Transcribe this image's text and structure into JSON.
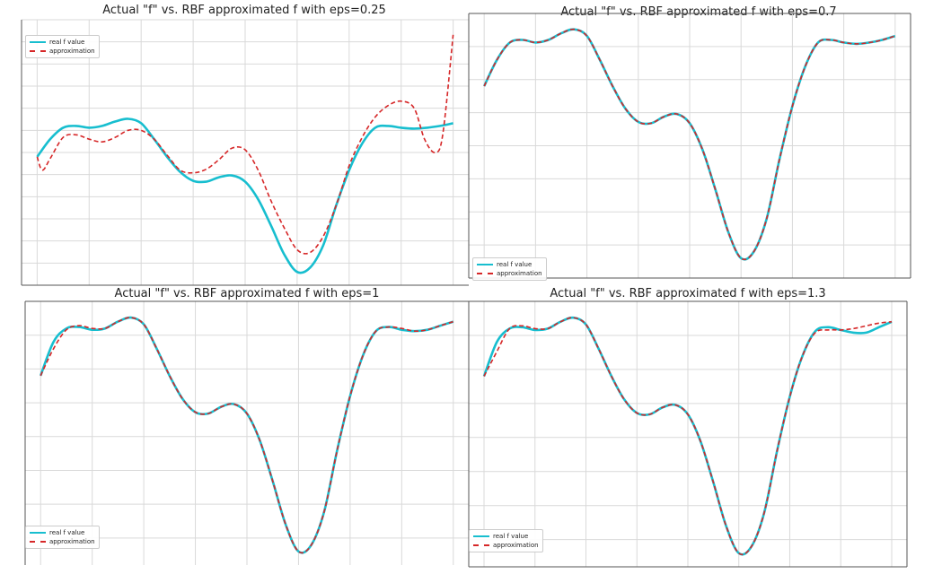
{
  "chart_data": [
    {
      "type": "line",
      "title": "Actual \"f\" vs. RBF approximated f with eps=0.25",
      "xlabel": "",
      "ylabel": "",
      "xlim": [
        -0.3,
        8.3
      ],
      "ylim": [
        -1.25,
        1.75
      ],
      "grid": true,
      "legend_position": "top-left",
      "series": [
        {
          "name": "real f value",
          "color": "#17becf",
          "style": "solid",
          "x": [
            0,
            0.25,
            0.5,
            0.75,
            1,
            1.25,
            1.5,
            1.75,
            2,
            2.25,
            2.5,
            2.75,
            3,
            3.25,
            3.5,
            3.75,
            4,
            4.25,
            4.5,
            4.75,
            5,
            5.25,
            5.5,
            5.75,
            6,
            6.25,
            6.5,
            6.75,
            7,
            7.25,
            7.5,
            7.75,
            8
          ],
          "y": [
            0.2,
            0.4,
            0.53,
            0.55,
            0.53,
            0.55,
            0.6,
            0.63,
            0.58,
            0.4,
            0.2,
            0.03,
            -0.07,
            -0.08,
            -0.03,
            -0.01,
            -0.08,
            -0.28,
            -0.58,
            -0.9,
            -1.1,
            -1.05,
            -0.8,
            -0.35,
            0.05,
            0.35,
            0.53,
            0.55,
            0.53,
            0.52,
            0.53,
            0.55,
            0.58
          ]
        },
        {
          "name": "approximation",
          "color": "#d62728",
          "style": "dashed",
          "x": [
            0,
            0.1,
            0.25,
            0.5,
            0.75,
            1,
            1.25,
            1.5,
            1.75,
            2,
            2.25,
            2.5,
            2.75,
            3,
            3.25,
            3.5,
            3.75,
            4,
            4.25,
            4.5,
            4.75,
            5,
            5.25,
            5.5,
            5.75,
            6,
            6.25,
            6.5,
            6.75,
            7,
            7.25,
            7.45,
            7.65,
            7.8,
            8
          ],
          "y": [
            0.2,
            0.05,
            0.18,
            0.42,
            0.45,
            0.4,
            0.37,
            0.42,
            0.5,
            0.5,
            0.4,
            0.22,
            0.05,
            0.02,
            0.06,
            0.17,
            0.3,
            0.28,
            0.05,
            -0.3,
            -0.6,
            -0.85,
            -0.88,
            -0.7,
            -0.35,
            0.1,
            0.42,
            0.65,
            0.78,
            0.83,
            0.75,
            0.4,
            0.25,
            0.45,
            1.58
          ]
        }
      ]
    },
    {
      "type": "line",
      "title": "Actual \"f\" vs. RBF approximated f with eps=0.7",
      "xlabel": "",
      "ylabel": "",
      "xlim": [
        -0.3,
        8.3
      ],
      "ylim": [
        -1.25,
        0.75
      ],
      "grid": true,
      "legend_position": "bottom-left",
      "series": [
        {
          "name": "real f value",
          "color": "#17becf",
          "style": "solid",
          "x": [
            0,
            0.25,
            0.5,
            0.75,
            1,
            1.25,
            1.5,
            1.75,
            2,
            2.25,
            2.5,
            2.75,
            3,
            3.25,
            3.5,
            3.75,
            4,
            4.25,
            4.5,
            4.75,
            5,
            5.25,
            5.5,
            5.75,
            6,
            6.25,
            6.5,
            6.75,
            7,
            7.25,
            7.5,
            7.75,
            8
          ],
          "y": [
            0.2,
            0.4,
            0.53,
            0.55,
            0.53,
            0.55,
            0.6,
            0.63,
            0.58,
            0.4,
            0.2,
            0.03,
            -0.07,
            -0.08,
            -0.03,
            -0.01,
            -0.08,
            -0.28,
            -0.58,
            -0.9,
            -1.1,
            -1.05,
            -0.8,
            -0.35,
            0.05,
            0.35,
            0.53,
            0.55,
            0.53,
            0.52,
            0.53,
            0.55,
            0.58
          ]
        },
        {
          "name": "approximation",
          "color": "#d62728",
          "style": "dashed",
          "x": [
            0,
            0.25,
            0.5,
            0.75,
            1,
            1.25,
            1.5,
            1.75,
            2,
            2.25,
            2.5,
            2.75,
            3,
            3.25,
            3.5,
            3.75,
            4,
            4.25,
            4.5,
            4.75,
            5,
            5.25,
            5.5,
            5.75,
            6,
            6.25,
            6.5,
            6.75,
            7,
            7.25,
            7.5,
            7.75,
            8
          ],
          "y": [
            0.2,
            0.4,
            0.53,
            0.55,
            0.53,
            0.55,
            0.6,
            0.63,
            0.58,
            0.4,
            0.2,
            0.03,
            -0.07,
            -0.08,
            -0.03,
            -0.01,
            -0.08,
            -0.28,
            -0.58,
            -0.9,
            -1.1,
            -1.05,
            -0.8,
            -0.35,
            0.05,
            0.35,
            0.53,
            0.55,
            0.53,
            0.52,
            0.53,
            0.55,
            0.58
          ]
        }
      ]
    },
    {
      "type": "line",
      "title": "Actual \"f\" vs. RBF approximated f with eps=1",
      "xlabel": "",
      "ylabel": "",
      "xlim": [
        -0.3,
        8.3
      ],
      "ylim": [
        -1.2,
        0.75
      ],
      "grid": true,
      "legend_position": "bottom-left",
      "series": [
        {
          "name": "real f value",
          "color": "#17becf",
          "style": "solid",
          "x": [
            0,
            0.25,
            0.5,
            0.75,
            1,
            1.25,
            1.5,
            1.75,
            2,
            2.25,
            2.5,
            2.75,
            3,
            3.25,
            3.5,
            3.75,
            4,
            4.25,
            4.5,
            4.75,
            5,
            5.25,
            5.5,
            5.75,
            6,
            6.25,
            6.5,
            6.75,
            7,
            7.25,
            7.5,
            7.75,
            8
          ],
          "y": [
            0.2,
            0.45,
            0.55,
            0.56,
            0.54,
            0.55,
            0.6,
            0.63,
            0.58,
            0.4,
            0.2,
            0.03,
            -0.07,
            -0.08,
            -0.03,
            -0.01,
            -0.08,
            -0.28,
            -0.58,
            -0.9,
            -1.1,
            -1.05,
            -0.8,
            -0.35,
            0.05,
            0.35,
            0.53,
            0.56,
            0.54,
            0.53,
            0.54,
            0.57,
            0.6
          ]
        },
        {
          "name": "approximation",
          "color": "#d62728",
          "style": "dashed",
          "x": [
            0,
            0.25,
            0.5,
            0.75,
            1,
            1.25,
            1.5,
            1.75,
            2,
            2.25,
            2.5,
            2.75,
            3,
            3.25,
            3.5,
            3.75,
            4,
            4.25,
            4.5,
            4.75,
            5,
            5.25,
            5.5,
            5.75,
            6,
            6.25,
            6.5,
            6.75,
            7,
            7.25,
            7.5,
            7.75,
            8
          ],
          "y": [
            0.2,
            0.4,
            0.54,
            0.57,
            0.55,
            0.55,
            0.6,
            0.63,
            0.58,
            0.4,
            0.2,
            0.03,
            -0.07,
            -0.08,
            -0.03,
            -0.01,
            -0.08,
            -0.28,
            -0.58,
            -0.9,
            -1.1,
            -1.05,
            -0.8,
            -0.35,
            0.05,
            0.35,
            0.53,
            0.56,
            0.55,
            0.53,
            0.54,
            0.57,
            0.6
          ]
        }
      ]
    },
    {
      "type": "line",
      "title": "Actual \"f\" vs. RBF approximated f with eps=1.3",
      "xlabel": "",
      "ylabel": "",
      "xlim": [
        -0.3,
        8.3
      ],
      "ylim": [
        -1.2,
        0.75
      ],
      "grid": true,
      "legend_position": "bottom-left",
      "series": [
        {
          "name": "real f value",
          "color": "#17becf",
          "style": "solid",
          "x": [
            0,
            0.25,
            0.5,
            0.75,
            1,
            1.25,
            1.5,
            1.75,
            2,
            2.25,
            2.5,
            2.75,
            3,
            3.25,
            3.5,
            3.75,
            4,
            4.25,
            4.5,
            4.75,
            5,
            5.25,
            5.5,
            5.75,
            6,
            6.25,
            6.5,
            6.75,
            7,
            7.25,
            7.5,
            7.75,
            8
          ],
          "y": [
            0.2,
            0.45,
            0.55,
            0.56,
            0.54,
            0.55,
            0.6,
            0.63,
            0.58,
            0.4,
            0.2,
            0.03,
            -0.07,
            -0.08,
            -0.03,
            -0.01,
            -0.08,
            -0.28,
            -0.58,
            -0.9,
            -1.1,
            -1.05,
            -0.8,
            -0.35,
            0.05,
            0.35,
            0.53,
            0.56,
            0.54,
            0.52,
            0.52,
            0.56,
            0.6
          ]
        },
        {
          "name": "approximation",
          "color": "#d62728",
          "style": "dashed",
          "x": [
            0,
            0.25,
            0.5,
            0.75,
            1,
            1.25,
            1.5,
            1.75,
            2,
            2.25,
            2.5,
            2.75,
            3,
            3.25,
            3.5,
            3.75,
            4,
            4.25,
            4.5,
            4.75,
            5,
            5.25,
            5.5,
            5.75,
            6,
            6.25,
            6.5,
            6.75,
            7,
            7.25,
            7.5,
            7.75,
            8
          ],
          "y": [
            0.2,
            0.38,
            0.55,
            0.57,
            0.55,
            0.55,
            0.6,
            0.63,
            0.58,
            0.4,
            0.2,
            0.03,
            -0.07,
            -0.08,
            -0.03,
            -0.01,
            -0.08,
            -0.28,
            -0.58,
            -0.9,
            -1.1,
            -1.05,
            -0.8,
            -0.35,
            0.05,
            0.35,
            0.52,
            0.54,
            0.54,
            0.55,
            0.57,
            0.59,
            0.6
          ]
        }
      ]
    }
  ]
}
